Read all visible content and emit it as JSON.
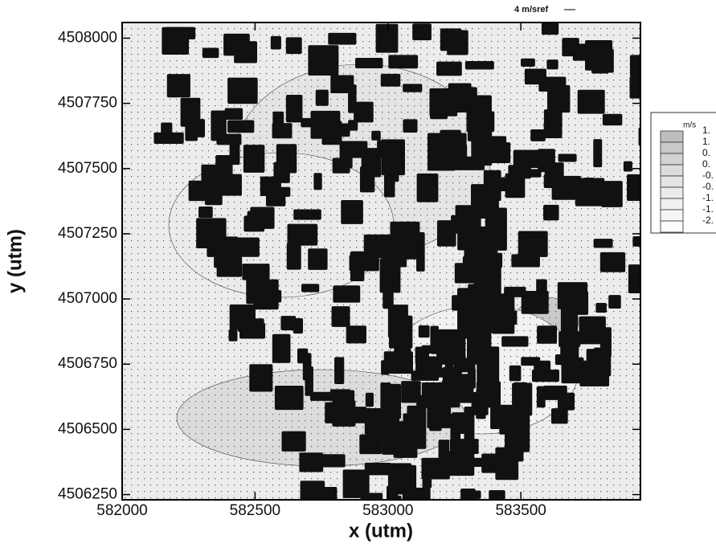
{
  "chart_data": {
    "type": "contour",
    "x_label": "x (utm)",
    "y_label": "y (utm)",
    "reference_vector": "4 m/sref",
    "xlim": [
      582000,
      583950
    ],
    "ylim": [
      4506230,
      4508060
    ],
    "xticks": [
      582000,
      582500,
      583000,
      583500
    ],
    "yticks": [
      4506250,
      4506500,
      4506750,
      4507000,
      4507250,
      4507500,
      4507750,
      4508000
    ],
    "legend": {
      "title": "m/s",
      "labels": [
        "1.",
        "1.",
        "0.",
        "0.",
        "-0.",
        "-0.",
        "-1.",
        "-1.",
        "-2."
      ],
      "colors": [
        "#bdbdbd",
        "#c9c9c9",
        "#d3d3d3",
        "#dcdcdc",
        "#e4e4e4",
        "#ebebeb",
        "#f1f1f1",
        "#f6f6f6",
        "#fbfbfb"
      ]
    },
    "field_color": "#ececec",
    "building_color": "#111111"
  }
}
